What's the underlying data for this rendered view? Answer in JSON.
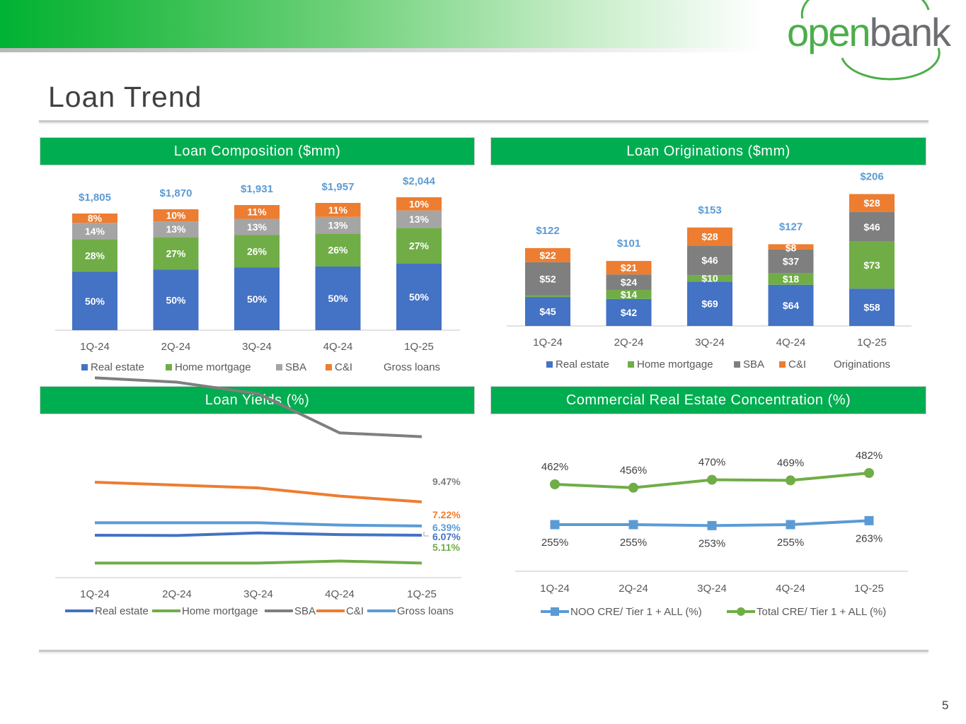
{
  "slide": {
    "title": "Loan Trend",
    "page_number": "5"
  },
  "logo": {
    "part1": "open",
    "part2": "bank"
  },
  "colors": {
    "real_estate": "#4472c4",
    "home_mortgage": "#70ad47",
    "sba": "#a5a5a5",
    "sba_dark": "#7f7f7f",
    "ci": "#ed7d31",
    "gross": "#5b9bd5",
    "header_green": "#00ad50",
    "total_label": "#5b9bd5"
  },
  "panels": {
    "composition": "Loan Composition ($mm)",
    "originations": "Loan Originations ($mm)",
    "yields": "Loan Yields (%)",
    "cre": "Commercial Real Estate Concentration (%)"
  },
  "chart_data": [
    {
      "type": "bar",
      "stacked": true,
      "title": "Loan Composition ($mm)",
      "categories": [
        "1Q-24",
        "2Q-24",
        "3Q-24",
        "4Q-24",
        "1Q-25"
      ],
      "series": [
        {
          "name": "Real estate",
          "values": [
            50,
            50,
            50,
            50,
            50
          ],
          "labels": [
            "50%",
            "50%",
            "50%",
            "50%",
            "50%"
          ]
        },
        {
          "name": "Home mortgage",
          "values": [
            28,
            27,
            26,
            26,
            27
          ],
          "labels": [
            "28%",
            "27%",
            "26%",
            "26%",
            "27%"
          ]
        },
        {
          "name": "SBA",
          "values": [
            14,
            13,
            13,
            13,
            13
          ],
          "labels": [
            "14%",
            "13%",
            "13%",
            "13%",
            "13%"
          ]
        },
        {
          "name": "C&I",
          "values": [
            8,
            10,
            11,
            11,
            10
          ],
          "labels": [
            "8%",
            "10%",
            "11%",
            "11%",
            "10%"
          ]
        }
      ],
      "totals": {
        "name": "Gross loans",
        "values": [
          1805,
          1870,
          1931,
          1957,
          2044
        ],
        "labels": [
          "$1,805",
          "$1,870",
          "$1,931",
          "$1,957",
          "$2,044"
        ]
      },
      "legend": [
        "Real estate",
        "Home mortgage",
        "SBA",
        "C&I",
        "Gross loans"
      ],
      "legend_position": "bottom"
    },
    {
      "type": "bar",
      "stacked": true,
      "title": "Loan Originations ($mm)",
      "categories": [
        "1Q-24",
        "2Q-24",
        "3Q-24",
        "4Q-24",
        "1Q-25"
      ],
      "series": [
        {
          "name": "Real estate",
          "values": [
            45,
            42,
            69,
            64,
            58
          ],
          "labels": [
            "$45",
            "$42",
            "$69",
            "$64",
            "$58"
          ]
        },
        {
          "name": "Home mortgage",
          "values": [
            2,
            14,
            10,
            18,
            73
          ],
          "labels": [
            "$2",
            "$14",
            "$10",
            "$18",
            "$73"
          ]
        },
        {
          "name": "SBA",
          "values": [
            52,
            24,
            46,
            37,
            46
          ],
          "labels": [
            "$52",
            "$24",
            "$46",
            "$37",
            "$46"
          ]
        },
        {
          "name": "C&I",
          "values": [
            22,
            21,
            28,
            8,
            28
          ],
          "labels": [
            "$22",
            "$21",
            "$28",
            "$8",
            "$28"
          ]
        }
      ],
      "totals": {
        "name": "Originations",
        "values": [
          122,
          101,
          153,
          127,
          206
        ],
        "labels": [
          "$122",
          "$101",
          "$153",
          "$127",
          "$206"
        ]
      },
      "legend": [
        "Real estate",
        "Home mortgage",
        "SBA",
        "C&I",
        "Originations"
      ],
      "legend_position": "bottom"
    },
    {
      "type": "line",
      "title": "Loan Yields (%)",
      "categories": [
        "1Q-24",
        "2Q-24",
        "3Q-24",
        "4Q-24",
        "1Q-25"
      ],
      "series": [
        {
          "name": "Real estate",
          "values": [
            6.07,
            6.06,
            6.15,
            6.09,
            6.07
          ],
          "end_label": "6.07%"
        },
        {
          "name": "Home mortgage",
          "values": [
            5.11,
            5.11,
            5.11,
            5.18,
            5.11
          ],
          "end_label": "5.11%"
        },
        {
          "name": "SBA",
          "values": [
            11.5,
            11.35,
            10.95,
            9.6,
            9.47
          ],
          "end_label": "9.47%"
        },
        {
          "name": "C&I",
          "values": [
            7.9,
            7.8,
            7.7,
            7.42,
            7.22
          ],
          "end_label": "7.22%"
        },
        {
          "name": "Gross loans",
          "values": [
            6.5,
            6.5,
            6.5,
            6.42,
            6.39
          ],
          "end_label": "6.39%"
        }
      ],
      "legend": [
        "Real estate",
        "Home mortgage",
        "SBA",
        "C&I",
        "Gross loans"
      ],
      "legend_position": "bottom"
    },
    {
      "type": "line",
      "title": "Commercial Real Estate Concentration (%)",
      "categories": [
        "1Q-24",
        "2Q-24",
        "3Q-24",
        "4Q-24",
        "1Q-25"
      ],
      "series": [
        {
          "name": "NOO CRE/ Tier 1 + ALL (%)",
          "values": [
            255,
            255,
            253,
            255,
            263
          ],
          "labels": [
            "255%",
            "255%",
            "253%",
            "255%",
            "263%"
          ],
          "marker": "square"
        },
        {
          "name": "Total CRE/ Tier 1 + ALL (%)",
          "values": [
            462,
            456,
            470,
            469,
            482
          ],
          "labels": [
            "462%",
            "456%",
            "470%",
            "469%",
            "482%"
          ],
          "marker": "circle"
        }
      ],
      "legend": [
        "NOO CRE/ Tier 1 + ALL (%)",
        "Total CRE/ Tier 1 + ALL (%)"
      ],
      "legend_position": "bottom"
    }
  ]
}
